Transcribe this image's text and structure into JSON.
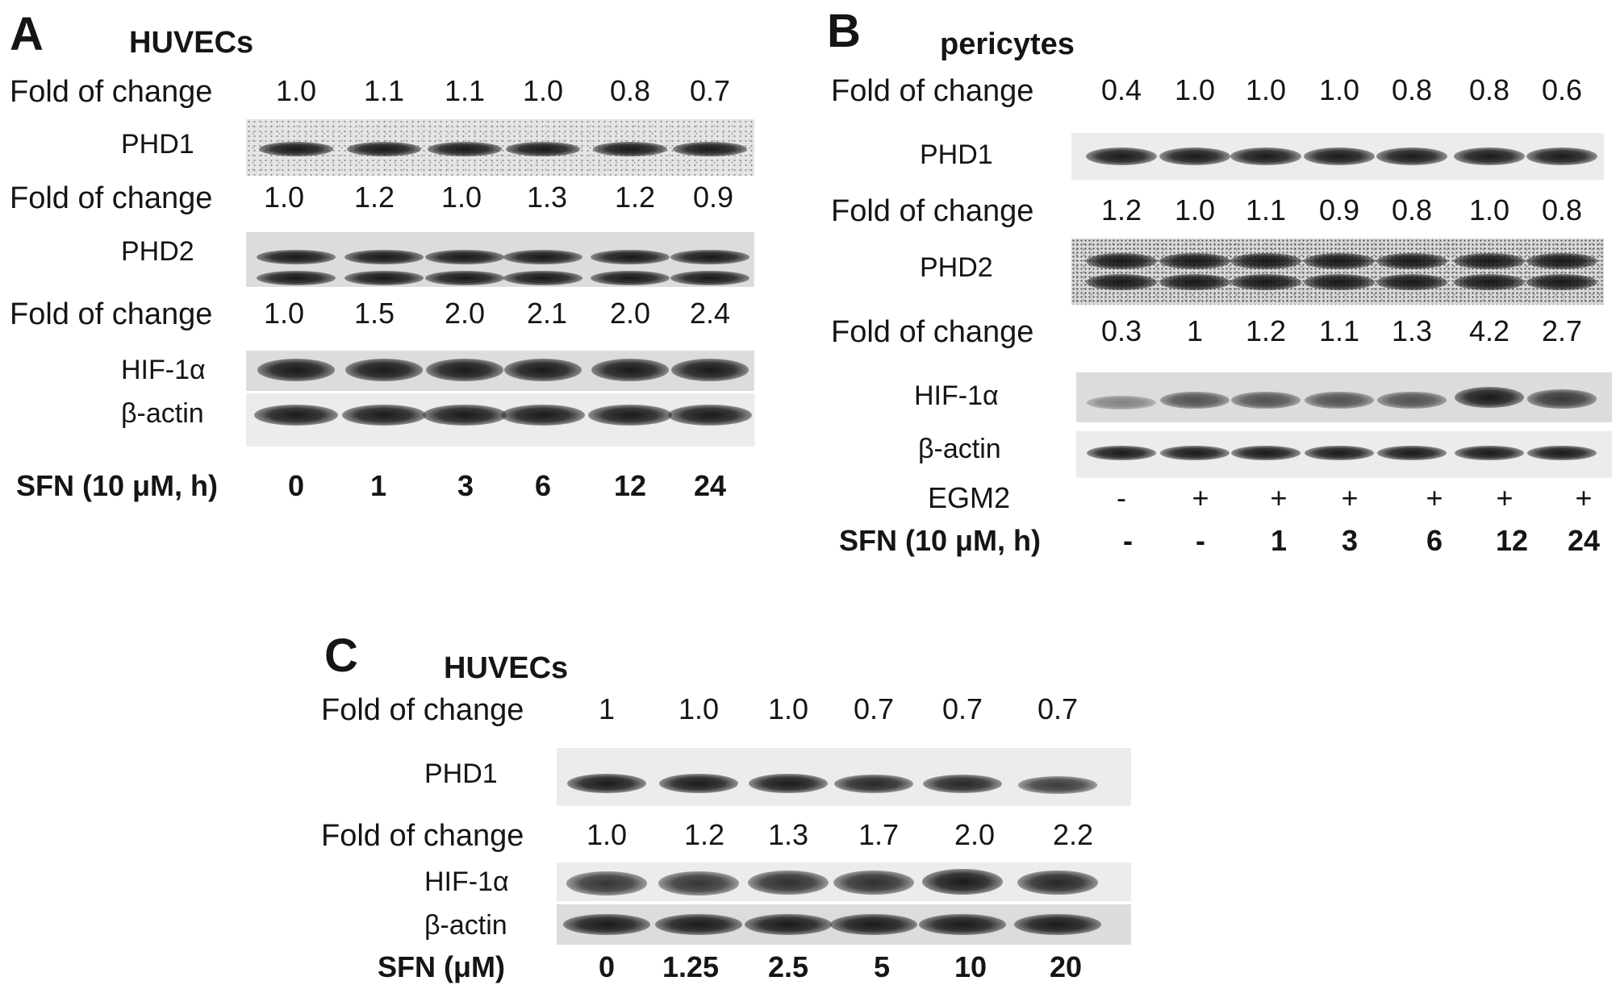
{
  "panel_a": {
    "label": "A",
    "title": "HUVECs",
    "fold_label": "Fold of change",
    "phd1_folds": [
      "1.0",
      "1.1",
      "1.1",
      "1.0",
      "0.8",
      "0.7"
    ],
    "phd1_label": "PHD1",
    "phd2_folds": [
      "1.0",
      "1.2",
      "1.0",
      "1.3",
      "1.2",
      "0.9"
    ],
    "phd2_label": "PHD2",
    "hif_folds": [
      "1.0",
      "1.5",
      "2.0",
      "2.1",
      "2.0",
      "2.4"
    ],
    "hif_label": "HIF-1α",
    "actin_label": "β-actin",
    "sfn_label": "SFN (10 μM, h)",
    "sfn_values": [
      "0",
      "1",
      "3",
      "6",
      "12",
      "24"
    ]
  },
  "panel_b": {
    "label": "B",
    "title": "pericytes",
    "fold_label": "Fold of change",
    "phd1_folds": [
      "0.4",
      "1.0",
      "1.0",
      "1.0",
      "0.8",
      "0.8",
      "0.6"
    ],
    "phd1_label": "PHD1",
    "phd2_folds": [
      "1.2",
      "1.0",
      "1.1",
      "0.9",
      "0.8",
      "1.0",
      "0.8"
    ],
    "phd2_label": "PHD2",
    "hif_folds": [
      "0.3",
      "1",
      "1.2",
      "1.1",
      "1.3",
      "4.2",
      "2.7"
    ],
    "hif_label": "HIF-1α",
    "actin_label": "β-actin",
    "egm2_label": "EGM2",
    "egm2_values": [
      "-",
      "+",
      "+",
      "+",
      "+",
      "+",
      "+"
    ],
    "sfn_label": "SFN (10 μM, h)",
    "sfn_values": [
      "-",
      "-",
      "1",
      "3",
      "6",
      "12",
      "24"
    ]
  },
  "panel_c": {
    "label": "C",
    "title": "HUVECs",
    "fold_label": "Fold of change",
    "phd1_folds": [
      "1",
      "1.0",
      "1.0",
      "0.7",
      "0.7",
      "0.7"
    ],
    "phd1_label": "PHD1",
    "hif_folds": [
      "1.0",
      "1.2",
      "1.3",
      "1.7",
      "2.0",
      "2.2"
    ],
    "hif_label": "HIF-1α",
    "actin_label": "β-actin",
    "sfn_label": "SFN (μM)",
    "sfn_values": [
      "0",
      "1.25",
      "2.5",
      "5",
      "10",
      "20"
    ]
  }
}
